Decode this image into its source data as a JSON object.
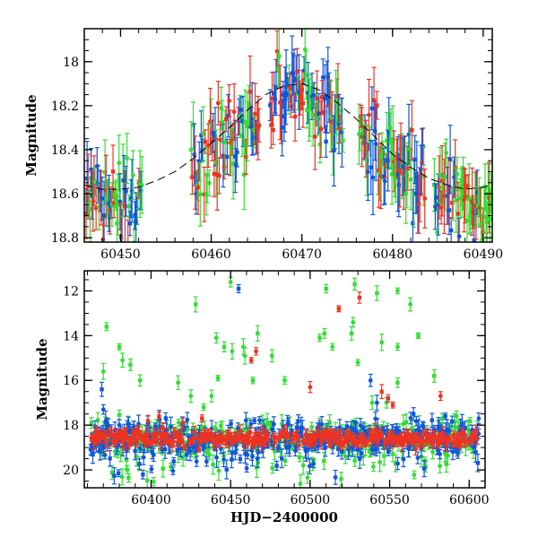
{
  "colors": {
    "green": "#33dd33",
    "red": "#ee3322",
    "blue": "#1155dd",
    "model": "#000000"
  },
  "chart_data": [
    {
      "type": "scatter",
      "title": "",
      "xlabel": "",
      "ylabel": "Magnitude",
      "xlim": [
        60446,
        60491
      ],
      "ylim": [
        18.82,
        17.85
      ],
      "y_inverted": true,
      "xticks": [
        60450,
        60460,
        60470,
        60480,
        60490
      ],
      "xtick_labels": [
        "60450",
        "60460",
        "60470",
        "60480",
        "60490"
      ],
      "yticks": [
        18,
        18.2,
        18.4,
        18.6,
        18.8
      ],
      "ytick_labels": [
        "18",
        "18.2",
        "18.4",
        "18.6",
        "18.8"
      ],
      "grid": false,
      "legend": "none",
      "observation_windows": [
        [
          60446.2,
          60452.4
        ],
        [
          60457.8,
          60465.3
        ],
        [
          60466.5,
          60474.6
        ],
        [
          60476.3,
          60483.6
        ],
        [
          60484.6,
          60491
        ]
      ],
      "model_curve": {
        "style": "dashed",
        "color": "model",
        "x": [
          60446,
          60448,
          60450,
          60452,
          60454,
          60456,
          60458,
          60460,
          60462,
          60464,
          60466,
          60468,
          60470,
          60472,
          60474,
          60476,
          60478,
          60480,
          60482,
          60484,
          60486,
          60488,
          60490,
          60491
        ],
        "y": [
          18.56,
          18.58,
          18.58,
          18.57,
          18.54,
          18.5,
          18.44,
          18.37,
          18.3,
          18.22,
          18.15,
          18.11,
          18.1,
          18.13,
          18.19,
          18.26,
          18.34,
          18.42,
          18.48,
          18.53,
          18.56,
          18.58,
          18.57,
          18.56
        ]
      },
      "series_colors": [
        "green",
        "red",
        "blue"
      ]
    },
    {
      "type": "scatter",
      "title": "",
      "xlabel": "HJD−2400000",
      "ylabel": "Magnitude",
      "xlim": [
        60358,
        60610
      ],
      "ylim": [
        20.8,
        11.1
      ],
      "y_inverted": true,
      "xticks": [
        60400,
        60450,
        60500,
        60550,
        60600
      ],
      "xtick_labels": [
        "60400",
        "60450",
        "60500",
        "60550",
        "60600"
      ],
      "yticks": [
        12,
        14,
        16,
        18,
        20
      ],
      "ytick_labels": [
        "12",
        "14",
        "16",
        "18",
        "20"
      ],
      "grid": false,
      "legend": "none",
      "baseline_magnitude": 18.6,
      "outliers": {
        "green": [
          [
            60450,
            11.6
          ],
          [
            60510,
            11.9
          ],
          [
            60528,
            11.7
          ],
          [
            60542,
            12.1
          ],
          [
            60555,
            12.0
          ],
          [
            60563,
            12.6
          ],
          [
            60428,
            12.6
          ],
          [
            60467,
            13.9
          ],
          [
            60509,
            13.9
          ],
          [
            60526,
            13.9
          ],
          [
            60527,
            13.4
          ],
          [
            60372,
            13.6
          ],
          [
            60370,
            15.6
          ],
          [
            60380,
            14.5
          ],
          [
            60382,
            15.1
          ],
          [
            60387,
            15.3
          ],
          [
            60441,
            14.1
          ],
          [
            60442,
            15.9
          ],
          [
            60446,
            14.5
          ],
          [
            60451,
            14.7
          ],
          [
            60458,
            14.5
          ],
          [
            60459,
            14.9
          ],
          [
            60464,
            16.0
          ],
          [
            60476,
            14.9
          ],
          [
            60484,
            16.0
          ],
          [
            60506,
            14.1
          ],
          [
            60514,
            14.5
          ],
          [
            60530,
            15.2
          ],
          [
            60545,
            14.3
          ],
          [
            60555,
            14.5
          ],
          [
            60568,
            14.0
          ],
          [
            60578,
            15.8
          ],
          [
            60393,
            16.0
          ],
          [
            60417,
            16.1
          ],
          [
            60425,
            16.7
          ],
          [
            60438,
            16.7
          ],
          [
            60433,
            17.2
          ],
          [
            60539,
            17.0
          ],
          [
            60548,
            17.0
          ],
          [
            60555,
            16.1
          ],
          [
            60592,
            17.6
          ],
          [
            60583,
            17.7
          ]
        ],
        "red": [
          [
            60518,
            12.8
          ],
          [
            60531,
            12.3
          ],
          [
            60466,
            14.7
          ],
          [
            60463,
            15.1
          ],
          [
            60500,
            16.3
          ],
          [
            60545,
            16.5
          ],
          [
            60549,
            16.8
          ],
          [
            60552,
            17.1
          ],
          [
            60582,
            16.7
          ],
          [
            60405,
            17.6
          ],
          [
            60398,
            17.8
          ],
          [
            60420,
            17.9
          ],
          [
            60432,
            17.7
          ]
        ],
        "blue": [
          [
            60455,
            11.9
          ],
          [
            60369,
            16.4
          ],
          [
            60370,
            17.3
          ],
          [
            60538,
            16.0
          ],
          [
            60542,
            17.0
          ],
          [
            60465,
            17.8
          ],
          [
            60565,
            17.5
          ],
          [
            60585,
            17.6
          ],
          [
            60606,
            17.7
          ]
        ]
      },
      "series_colors": [
        "green",
        "red",
        "blue"
      ]
    }
  ]
}
